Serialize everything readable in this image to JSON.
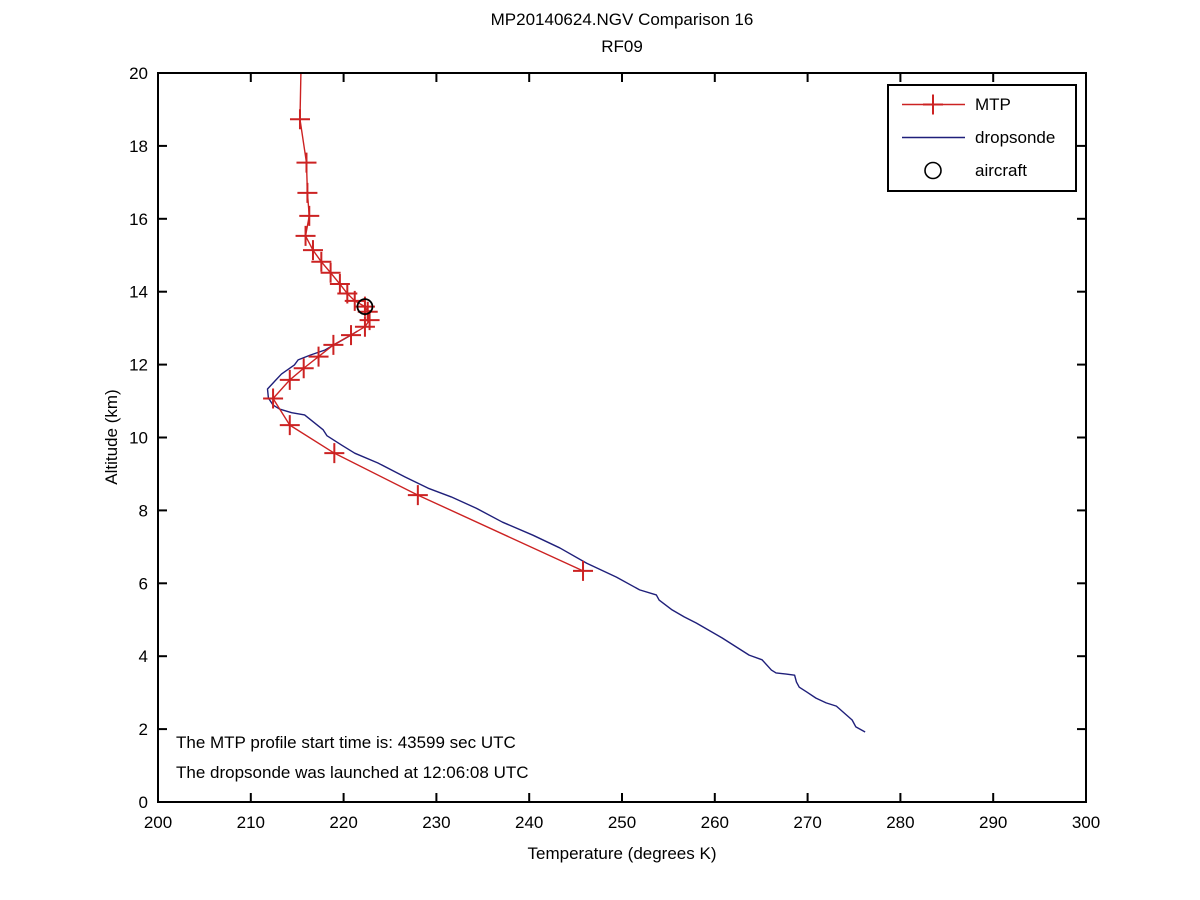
{
  "chart_data": {
    "type": "line",
    "title": "MP20140624.NGV Comparison 16",
    "subtitle": "RF09",
    "xlabel": "Temperature (degrees K)",
    "ylabel": "Altitude (km)",
    "xlim": [
      200,
      300
    ],
    "ylim": [
      0,
      20
    ],
    "xticks": [
      200,
      210,
      220,
      230,
      240,
      250,
      260,
      270,
      280,
      290,
      300
    ],
    "yticks": [
      0,
      2,
      4,
      6,
      8,
      10,
      12,
      14,
      16,
      18,
      20
    ],
    "grid": false,
    "background": "#ffffff",
    "axis_color": "#000000",
    "legend": {
      "position": "upper-right",
      "items": [
        {
          "label": "MTP",
          "sample": "red-line-plus"
        },
        {
          "label": "dropsonde",
          "sample": "navy-line"
        },
        {
          "label": "aircraft",
          "sample": "black-circle"
        }
      ]
    },
    "series": [
      {
        "name": "MTP",
        "color": "#cc2222",
        "marker": "plus",
        "marker_from_index": 1,
        "points": [
          [
            215.4,
            20.0
          ],
          [
            215.3,
            18.73
          ],
          [
            216.0,
            17.54
          ],
          [
            216.1,
            16.71
          ],
          [
            216.3,
            16.08
          ],
          [
            215.9,
            15.53
          ],
          [
            216.7,
            15.14
          ],
          [
            217.6,
            14.82
          ],
          [
            218.6,
            14.52
          ],
          [
            219.6,
            14.21
          ],
          [
            220.4,
            13.95
          ],
          [
            221.2,
            13.75
          ],
          [
            222.3,
            13.59
          ],
          [
            222.6,
            13.45
          ],
          [
            222.8,
            13.22
          ],
          [
            222.3,
            13.04
          ],
          [
            220.8,
            12.81
          ],
          [
            218.9,
            12.54
          ],
          [
            217.3,
            12.22
          ],
          [
            215.7,
            11.9
          ],
          [
            214.2,
            11.58
          ],
          [
            212.4,
            11.07
          ],
          [
            214.2,
            10.34
          ],
          [
            219.0,
            9.57
          ],
          [
            228.0,
            8.42
          ],
          [
            245.8,
            6.34
          ]
        ]
      },
      {
        "name": "dropsonde",
        "color": "#1f1f7a",
        "marker": "none",
        "marker_from_index": 0,
        "points": [
          [
            221.5,
            12.92
          ],
          [
            220.6,
            12.78
          ],
          [
            219.5,
            12.62
          ],
          [
            218.0,
            12.4
          ],
          [
            216.4,
            12.26
          ],
          [
            215.1,
            12.13
          ],
          [
            214.7,
            11.99
          ],
          [
            213.3,
            11.74
          ],
          [
            212.6,
            11.55
          ],
          [
            211.8,
            11.33
          ],
          [
            211.9,
            11.08
          ],
          [
            212.4,
            10.89
          ],
          [
            213.1,
            10.78
          ],
          [
            214.4,
            10.68
          ],
          [
            215.8,
            10.62
          ],
          [
            217.8,
            10.21
          ],
          [
            218.2,
            10.05
          ],
          [
            219.8,
            9.79
          ],
          [
            221.2,
            9.57
          ],
          [
            223.7,
            9.3
          ],
          [
            226.6,
            8.92
          ],
          [
            229.1,
            8.61
          ],
          [
            231.6,
            8.37
          ],
          [
            234.3,
            8.06
          ],
          [
            237.1,
            7.68
          ],
          [
            240.4,
            7.32
          ],
          [
            243.3,
            6.97
          ],
          [
            246.2,
            6.55
          ],
          [
            249.4,
            6.17
          ],
          [
            251.9,
            5.82
          ],
          [
            253.7,
            5.68
          ],
          [
            254.0,
            5.54
          ],
          [
            255.4,
            5.27
          ],
          [
            256.7,
            5.08
          ],
          [
            258.0,
            4.91
          ],
          [
            260.8,
            4.5
          ],
          [
            263.7,
            4.03
          ],
          [
            265.1,
            3.9
          ],
          [
            266.1,
            3.62
          ],
          [
            266.6,
            3.54
          ],
          [
            267.7,
            3.51
          ],
          [
            268.6,
            3.48
          ],
          [
            268.8,
            3.29
          ],
          [
            269.1,
            3.15
          ],
          [
            269.9,
            3.02
          ],
          [
            270.9,
            2.85
          ],
          [
            272.0,
            2.72
          ],
          [
            273.1,
            2.63
          ],
          [
            274.8,
            2.25
          ],
          [
            275.2,
            2.06
          ],
          [
            276.2,
            1.92
          ]
        ]
      }
    ],
    "aircraft_point": {
      "x": 222.3,
      "y": 13.59,
      "color": "#000000"
    },
    "annotations": [
      "The MTP profile start time is: 43599 sec UTC",
      "The dropsonde was launched at 12:06:08 UTC"
    ]
  }
}
